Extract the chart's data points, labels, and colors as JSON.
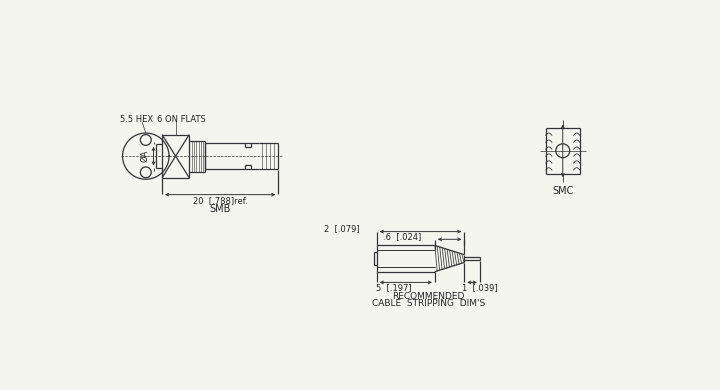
{
  "bg_color": "#f5f5f0",
  "line_color": "#333333",
  "text_color": "#222222",
  "font_size": 6.0,
  "fig_width": 7.2,
  "fig_height": 3.9,
  "cable_strip": {
    "label1": "2  [.079]",
    "label2": ".6  [.024]",
    "label3": "5  [.197]",
    "label4": "1  [.039]",
    "caption1": "RECOMMENDED",
    "caption2": "CABLE  STRIPPING  DIM'S"
  },
  "smb": {
    "label_hex": "5.5 HEX",
    "label_flats": "6 ON FLATS",
    "label_dia": "ØA",
    "label_dim": "20  [.788]ref.",
    "label_name": "SMB"
  },
  "smc": {
    "label_name": "SMC"
  }
}
